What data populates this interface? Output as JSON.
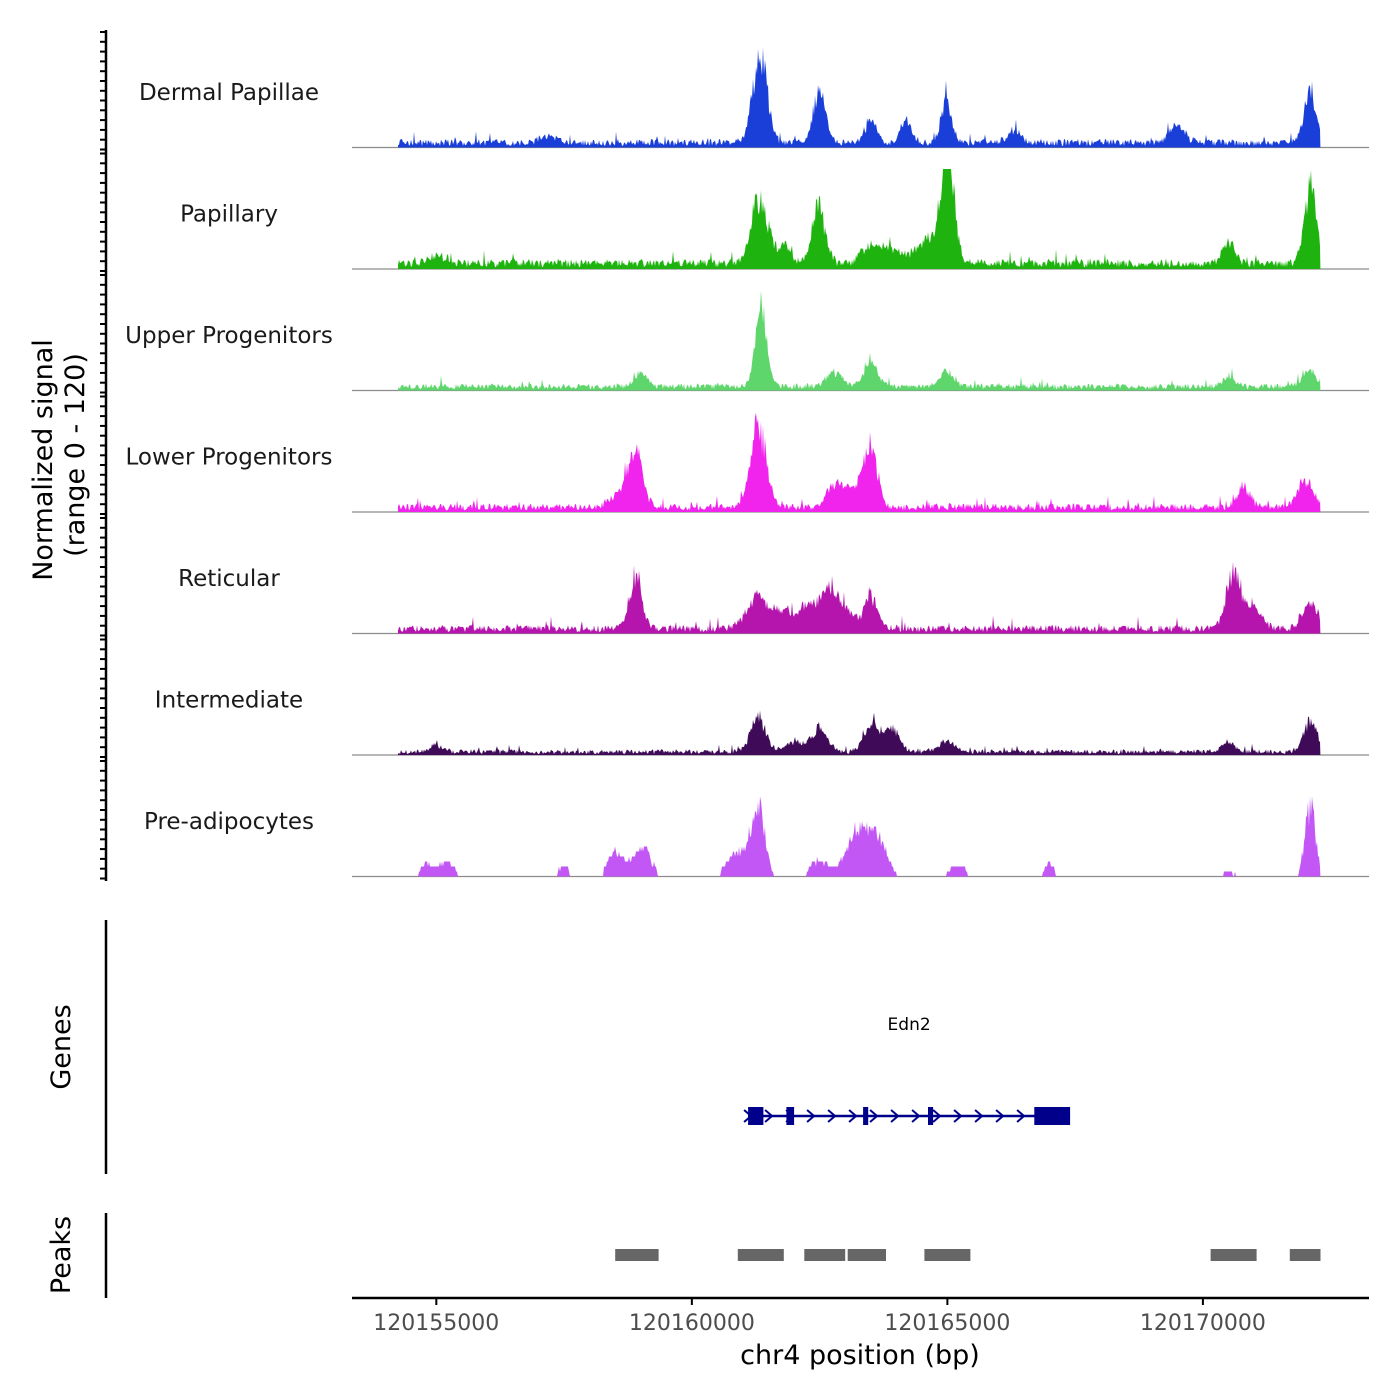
{
  "chart_data": {
    "type": "area",
    "title": "",
    "chromosome": "chr4",
    "xlabel": "chr4 position (bp)",
    "ylabel_line1": "Normalized signal",
    "ylabel_line2": "(range 0 - 120)",
    "yrange": [
      0,
      120
    ],
    "xrange": [
      120153350,
      120173250
    ],
    "xticks": [
      120155000,
      120160000,
      120165000,
      120170000
    ],
    "xtick_labels": [
      "120155000",
      "120160000",
      "120165000",
      "120170000"
    ],
    "signal_start": 120154250,
    "signal_end": 120172300,
    "tracks": [
      {
        "name": "Dermal Papillae",
        "color": "#1a3fd9",
        "baseline": 6,
        "peaks": [
          [
            120161330,
            105,
            140
          ],
          [
            120162500,
            60,
            120
          ],
          [
            120164980,
            52,
            100
          ],
          [
            120163500,
            28,
            110
          ],
          [
            120164200,
            26,
            110
          ],
          [
            120172100,
            58,
            120
          ],
          [
            120169500,
            20,
            150
          ],
          [
            120166300,
            15,
            120
          ],
          [
            120157200,
            10,
            150
          ]
        ]
      },
      {
        "name": "Papillary",
        "color": "#1fb30f",
        "baseline": 7,
        "peaks": [
          [
            120161330,
            78,
            160
          ],
          [
            120162480,
            64,
            130
          ],
          [
            120165000,
            125,
            120
          ],
          [
            120164700,
            30,
            300
          ],
          [
            120163500,
            25,
            160
          ],
          [
            120163900,
            20,
            160
          ],
          [
            120170500,
            24,
            120
          ],
          [
            120172100,
            90,
            120
          ],
          [
            120161800,
            20,
            150
          ],
          [
            120155000,
            10,
            160
          ]
        ]
      },
      {
        "name": "Upper Progenitors",
        "color": "#5ed66b",
        "baseline": 5,
        "peaks": [
          [
            120161350,
            92,
            110
          ],
          [
            120163500,
            32,
            130
          ],
          [
            120162800,
            18,
            160
          ],
          [
            120159000,
            16,
            120
          ],
          [
            120165000,
            20,
            120
          ],
          [
            120170500,
            12,
            120
          ],
          [
            120172100,
            18,
            140
          ]
        ]
      },
      {
        "name": "Lower Progenitors",
        "color": "#f024ec",
        "baseline": 6,
        "peaks": [
          [
            120161300,
            95,
            150
          ],
          [
            120158900,
            65,
            140
          ],
          [
            120163500,
            68,
            130
          ],
          [
            120162800,
            25,
            160
          ],
          [
            120163200,
            22,
            200
          ],
          [
            120170800,
            25,
            130
          ],
          [
            120172000,
            30,
            150
          ],
          [
            120158600,
            15,
            200
          ]
        ]
      },
      {
        "name": "Reticular",
        "color": "#b514ad",
        "baseline": 6,
        "peaks": [
          [
            120158900,
            62,
            120
          ],
          [
            120161300,
            40,
            220
          ],
          [
            120162300,
            30,
            200
          ],
          [
            120162700,
            40,
            150
          ],
          [
            120163500,
            42,
            120
          ],
          [
            120163000,
            20,
            200
          ],
          [
            120170600,
            68,
            140
          ],
          [
            120171000,
            28,
            150
          ],
          [
            120172100,
            30,
            150
          ],
          [
            120161800,
            20,
            150
          ]
        ]
      },
      {
        "name": "Intermediate",
        "color": "#3f0a57",
        "baseline": 4,
        "peaks": [
          [
            120161300,
            42,
            140
          ],
          [
            120162500,
            28,
            150
          ],
          [
            120163500,
            35,
            130
          ],
          [
            120163900,
            28,
            150
          ],
          [
            120162000,
            12,
            200
          ],
          [
            120170500,
            12,
            120
          ],
          [
            120172100,
            38,
            130
          ],
          [
            120165000,
            12,
            150
          ],
          [
            120155000,
            8,
            120
          ]
        ]
      },
      {
        "name": "Pre-adipocytes",
        "color": "#c257f5",
        "baseline": 0,
        "peaks": [
          [
            120161300,
            82,
            130
          ],
          [
            120160900,
            30,
            200
          ],
          [
            120159000,
            35,
            180
          ],
          [
            120158500,
            28,
            140
          ],
          [
            120163200,
            50,
            200
          ],
          [
            120163600,
            45,
            200
          ],
          [
            120162500,
            20,
            160
          ],
          [
            120172100,
            85,
            100
          ],
          [
            120155200,
            18,
            150
          ],
          [
            120154800,
            14,
            120
          ],
          [
            120157500,
            14,
            100
          ],
          [
            120165200,
            12,
            180
          ],
          [
            120167000,
            14,
            100
          ],
          [
            120170500,
            8,
            150
          ]
        ]
      }
    ],
    "genes": [
      {
        "name": "Edn2",
        "start": 120161100,
        "end": 120167400,
        "strand": "+",
        "exons": [
          [
            120161100,
            120161400
          ],
          [
            120161850,
            120162000
          ],
          [
            120163350,
            120163450
          ],
          [
            120164620,
            120164720
          ],
          [
            120166700,
            120167400
          ]
        ]
      }
    ],
    "peaks": [
      [
        120158500,
        120159350
      ],
      [
        120160900,
        120161800
      ],
      [
        120162200,
        120163000
      ],
      [
        120163050,
        120163800
      ],
      [
        120164550,
        120165450
      ],
      [
        120170150,
        120171050
      ],
      [
        120171700,
        120172300
      ]
    ]
  },
  "labels": {
    "genes_axis": "Genes",
    "peaks_axis": "Peaks"
  }
}
